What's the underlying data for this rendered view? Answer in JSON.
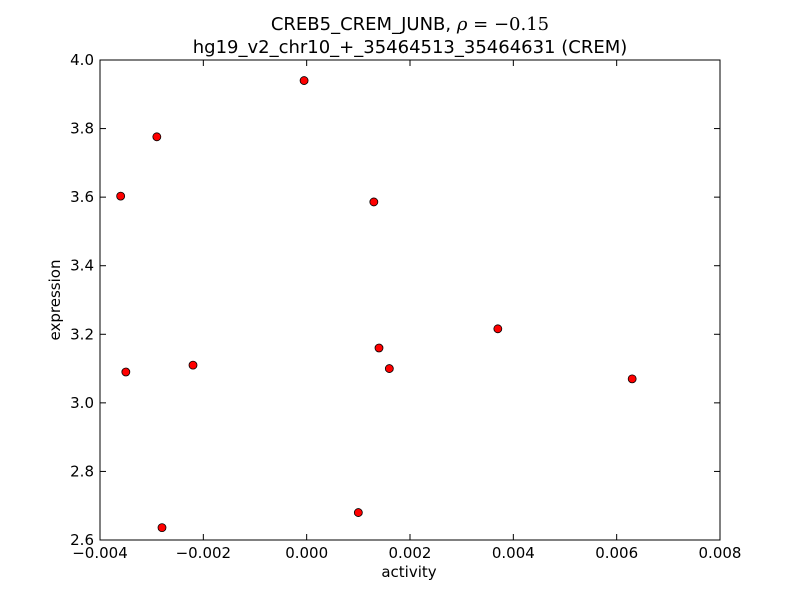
{
  "chart_data": {
    "type": "scatter",
    "title_line1_prefix": "CREB5_CREM_JUNB, ",
    "title_line1_symbol": "ρ",
    "title_line1_equals": " = ",
    "title_line1_value": "−0.15",
    "title_line2": "hg19_v2_chr10_+_35464513_35464631 (CREM)",
    "xlabel": "activity",
    "ylabel": "expression",
    "xlim": [
      -0.004,
      0.008
    ],
    "ylim": [
      2.6,
      4.0
    ],
    "x_ticks": [
      -0.004,
      -0.002,
      0.0,
      0.002,
      0.004,
      0.006,
      0.008
    ],
    "x_tick_labels": [
      "−0.004",
      "−0.002",
      "0.000",
      "0.002",
      "0.004",
      "0.006",
      "0.008"
    ],
    "y_ticks": [
      2.6,
      2.8,
      3.0,
      3.2,
      3.4,
      3.6,
      3.8,
      4.0
    ],
    "y_tick_labels": [
      "2.6",
      "2.8",
      "3.0",
      "3.2",
      "3.4",
      "3.6",
      "3.8",
      "4.0"
    ],
    "grid": false,
    "marker_color": "#ff0000",
    "points": [
      {
        "x": -0.0036,
        "y": 3.603
      },
      {
        "x": -0.0035,
        "y": 3.09
      },
      {
        "x": -0.0029,
        "y": 3.776
      },
      {
        "x": -0.0028,
        "y": 2.636
      },
      {
        "x": -0.0022,
        "y": 3.11
      },
      {
        "x": -5e-05,
        "y": 3.94
      },
      {
        "x": 0.001,
        "y": 2.68
      },
      {
        "x": 0.0013,
        "y": 3.586
      },
      {
        "x": 0.0014,
        "y": 3.16
      },
      {
        "x": 0.0016,
        "y": 3.1
      },
      {
        "x": 0.0037,
        "y": 3.216
      },
      {
        "x": 0.0063,
        "y": 3.07
      }
    ]
  }
}
